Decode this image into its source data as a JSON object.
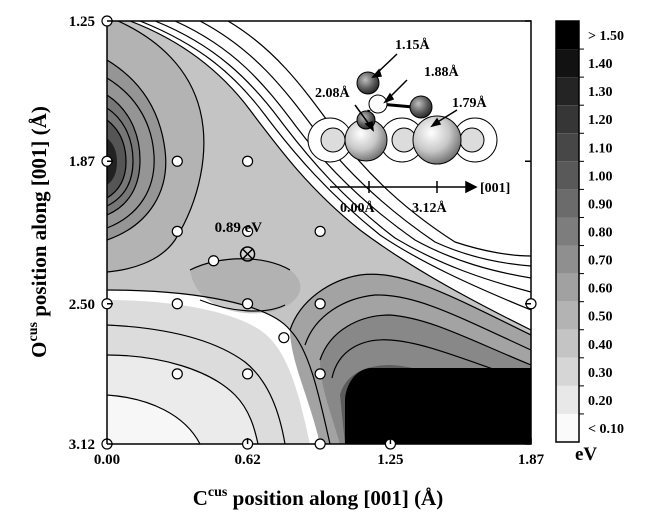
{
  "chart_data": {
    "type": "contour",
    "xlabel": {
      "base": "C",
      "sup": "cus",
      "rest": " position along [001]   (Å)"
    },
    "ylabel": {
      "base": "O",
      "sup": "cus",
      "rest": " position along [001]   (Å)"
    },
    "xticks": [
      "0.00",
      "0.62",
      "1.25",
      "1.87"
    ],
    "yticks": [
      "1.25",
      "1.87",
      "2.50",
      "3.12"
    ],
    "xlim": [
      0.0,
      1.87
    ],
    "ylim": [
      1.25,
      3.12
    ],
    "y_inverted": true,
    "colorbar": {
      "unit": "eV",
      "labels": [
        "> 1.50",
        "1.40",
        "1.30",
        "1.20",
        "1.10",
        "1.00",
        "0.90",
        "0.80",
        "0.70",
        "0.60",
        "0.50",
        "0.40",
        "0.30",
        "0.20",
        "< 0.10"
      ]
    },
    "annotation": {
      "text": "0.89 eV",
      "x": 0.62,
      "y": 2.28
    },
    "sample_points": [
      [
        0.0,
        1.25
      ],
      [
        0.0,
        1.87
      ],
      [
        0.0,
        2.5
      ],
      [
        0.0,
        3.12
      ],
      [
        0.31,
        1.87
      ],
      [
        0.62,
        1.87
      ],
      [
        0.31,
        2.18
      ],
      [
        0.62,
        2.18
      ],
      [
        0.94,
        2.18
      ],
      [
        0.47,
        2.31
      ],
      [
        0.31,
        2.5
      ],
      [
        0.62,
        2.5
      ],
      [
        0.94,
        2.5
      ],
      [
        0.78,
        2.65
      ],
      [
        0.31,
        2.81
      ],
      [
        0.62,
        2.81
      ],
      [
        0.94,
        2.81
      ],
      [
        0.62,
        3.12
      ],
      [
        0.94,
        3.12
      ],
      [
        1.25,
        3.12
      ],
      [
        1.87,
        2.5
      ]
    ],
    "inset": {
      "axis_label": "[001]",
      "tick_labels": [
        "0.00Å",
        "3.12Å"
      ],
      "bond_labels": [
        "1.15Å",
        "1.88Å",
        "2.08Å",
        "1.79Å"
      ]
    }
  }
}
